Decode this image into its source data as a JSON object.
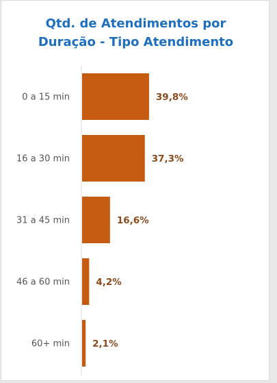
{
  "chart_data": {
    "type": "bar",
    "orientation": "horizontal",
    "title_lines": [
      "Qtd. de Atendimentos por",
      "Duração - Tipo Atendimento"
    ],
    "categories": [
      "0 a 15 min",
      "16 a 30 min",
      "31 a 45 min",
      "46 a 60 min",
      "60+ min"
    ],
    "values": [
      39.8,
      37.3,
      16.6,
      4.2,
      2.1
    ],
    "data_labels": [
      "39,8%",
      "37,3%",
      "16,6%",
      "4,2%",
      "2,1%"
    ],
    "xlim": [
      0,
      100
    ],
    "bar_color": "#c55a11",
    "label_color": "#8b4a1c",
    "title_color": "#1f6fbf",
    "grid": false,
    "legend": "none"
  }
}
